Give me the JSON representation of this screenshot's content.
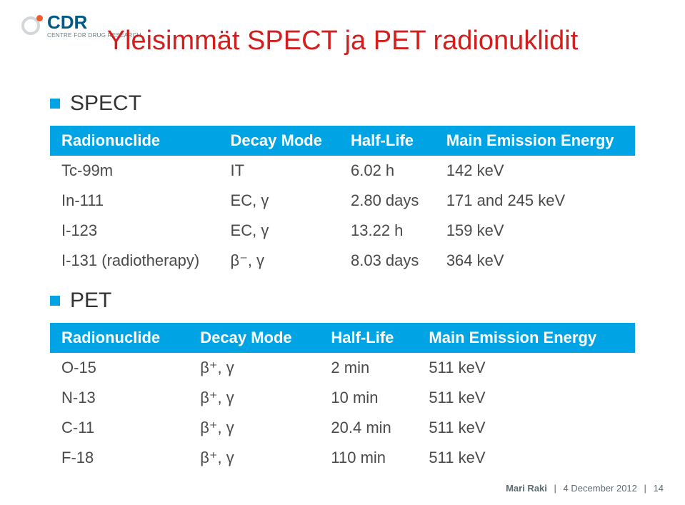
{
  "logo": {
    "text": "CDR",
    "subtitle": "CENTRE FOR DRUG RESEARCH",
    "text_color": "#005a87",
    "ring_color": "#d3d7d9",
    "dot_color": "#f15a29"
  },
  "title": {
    "text": "Yleisimmät SPECT ja PET radionuklidit",
    "color": "#d21f1d",
    "fontsize": 38
  },
  "sections": {
    "spect": {
      "label": "SPECT"
    },
    "pet": {
      "label": "PET"
    }
  },
  "table_style": {
    "header_bg": "#00a4e4",
    "header_fg": "#ffffff",
    "cell_fg": "#4a4a4a",
    "fontsize": 22
  },
  "spect_table": {
    "columns": [
      "Radionuclide",
      "Decay Mode",
      "Half-Life",
      "Main Emission Energy"
    ],
    "rows": [
      [
        "Tc-99m",
        "IT",
        "6.02 h",
        "142 keV"
      ],
      [
        "In-111",
        "EC, γ",
        "2.80 days",
        "171 and 245 keV"
      ],
      [
        "I-123",
        "EC, γ",
        "13.22 h",
        "159 keV"
      ],
      [
        "I-131 (radiotherapy)",
        "β⁻, γ",
        "8.03 days",
        "364 keV"
      ]
    ]
  },
  "pet_table": {
    "columns": [
      "Radionuclide",
      "Decay Mode",
      "Half-Life",
      "Main Emission Energy"
    ],
    "rows": [
      [
        "O-15",
        "β⁺, γ",
        "2 min",
        "511 keV"
      ],
      [
        "N-13",
        "β⁺, γ",
        "10 min",
        "511 keV"
      ],
      [
        "C-11",
        "β⁺, γ",
        "20.4 min",
        "511 keV"
      ],
      [
        "F-18",
        "β⁺, γ",
        "110 min",
        "511 keV"
      ]
    ]
  },
  "footer": {
    "name": "Mari Raki",
    "date": "4 December 2012",
    "page": "14"
  }
}
